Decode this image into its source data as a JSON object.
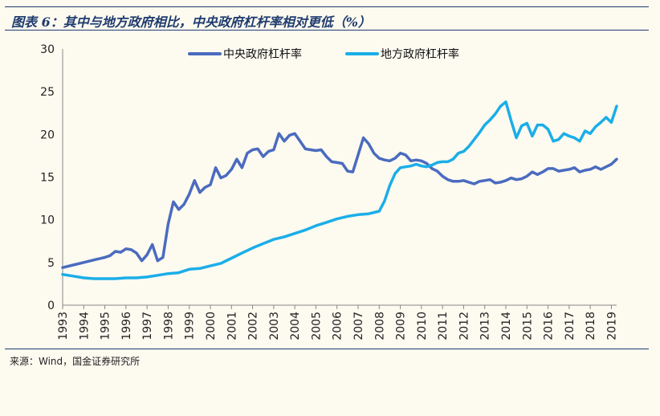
{
  "header": {
    "title": "图表 6：其中与地方政府相比，中央政府杠杆率相对更低（%）"
  },
  "footer": {
    "source": "来源：Wind，国金证券研究所"
  },
  "chart_data": {
    "type": "line",
    "title": "",
    "xlabel": "",
    "ylabel": "",
    "ylim": [
      0,
      30
    ],
    "yticks": [
      "0",
      "5",
      "10",
      "15",
      "20",
      "25",
      "30"
    ],
    "xlim": [
      1993,
      2019.25
    ],
    "xticks": [
      "1993",
      "1994",
      "1995",
      "1996",
      "1997",
      "1998",
      "1999",
      "2000",
      "2001",
      "2002",
      "2003",
      "2004",
      "2005",
      "2006",
      "2007",
      "2008",
      "2009",
      "2010",
      "2011",
      "2012",
      "2013",
      "2014",
      "2015",
      "2016",
      "2017",
      "2018",
      "2019"
    ],
    "grid": false,
    "legend_position": "top-center",
    "series": [
      {
        "name": "中央政府杠杆率",
        "color": "#4a6bbf",
        "points": [
          [
            1993.0,
            4.4
          ],
          [
            1993.5,
            4.7
          ],
          [
            1994.0,
            5.0
          ],
          [
            1994.5,
            5.3
          ],
          [
            1995.0,
            5.6
          ],
          [
            1995.25,
            5.8
          ],
          [
            1995.5,
            6.3
          ],
          [
            1995.75,
            6.2
          ],
          [
            1996.0,
            6.6
          ],
          [
            1996.25,
            6.5
          ],
          [
            1996.5,
            6.1
          ],
          [
            1996.75,
            5.2
          ],
          [
            1997.0,
            5.9
          ],
          [
            1997.25,
            7.1
          ],
          [
            1997.5,
            5.2
          ],
          [
            1997.75,
            5.6
          ],
          [
            1998.0,
            9.5
          ],
          [
            1998.25,
            12.1
          ],
          [
            1998.5,
            11.2
          ],
          [
            1998.75,
            11.8
          ],
          [
            1999.0,
            13.0
          ],
          [
            1999.25,
            14.6
          ],
          [
            1999.5,
            13.2
          ],
          [
            1999.75,
            13.8
          ],
          [
            2000.0,
            14.1
          ],
          [
            2000.25,
            16.1
          ],
          [
            2000.5,
            14.9
          ],
          [
            2000.75,
            15.2
          ],
          [
            2001.0,
            15.9
          ],
          [
            2001.25,
            17.1
          ],
          [
            2001.5,
            16.1
          ],
          [
            2001.75,
            17.8
          ],
          [
            2002.0,
            18.2
          ],
          [
            2002.25,
            18.3
          ],
          [
            2002.5,
            17.4
          ],
          [
            2002.75,
            18.0
          ],
          [
            2003.0,
            18.2
          ],
          [
            2003.25,
            20.1
          ],
          [
            2003.5,
            19.2
          ],
          [
            2003.75,
            19.9
          ],
          [
            2004.0,
            20.1
          ],
          [
            2004.25,
            19.2
          ],
          [
            2004.5,
            18.3
          ],
          [
            2004.75,
            18.2
          ],
          [
            2005.0,
            18.1
          ],
          [
            2005.25,
            18.2
          ],
          [
            2005.5,
            17.4
          ],
          [
            2005.75,
            16.8
          ],
          [
            2006.0,
            16.7
          ],
          [
            2006.25,
            16.6
          ],
          [
            2006.5,
            15.7
          ],
          [
            2006.75,
            15.6
          ],
          [
            2007.0,
            17.6
          ],
          [
            2007.25,
            19.6
          ],
          [
            2007.5,
            18.9
          ],
          [
            2007.75,
            17.8
          ],
          [
            2008.0,
            17.2
          ],
          [
            2008.25,
            17.0
          ],
          [
            2008.5,
            16.9
          ],
          [
            2008.75,
            17.2
          ],
          [
            2009.0,
            17.8
          ],
          [
            2009.25,
            17.6
          ],
          [
            2009.5,
            16.9
          ],
          [
            2009.75,
            17.0
          ],
          [
            2010.0,
            16.9
          ],
          [
            2010.25,
            16.6
          ],
          [
            2010.5,
            16.0
          ],
          [
            2010.75,
            15.7
          ],
          [
            2011.0,
            15.1
          ],
          [
            2011.25,
            14.7
          ],
          [
            2011.5,
            14.5
          ],
          [
            2011.75,
            14.5
          ],
          [
            2012.0,
            14.6
          ],
          [
            2012.25,
            14.4
          ],
          [
            2012.5,
            14.2
          ],
          [
            2012.75,
            14.5
          ],
          [
            2013.0,
            14.6
          ],
          [
            2013.25,
            14.7
          ],
          [
            2013.5,
            14.3
          ],
          [
            2013.75,
            14.4
          ],
          [
            2014.0,
            14.6
          ],
          [
            2014.25,
            14.9
          ],
          [
            2014.5,
            14.7
          ],
          [
            2014.75,
            14.8
          ],
          [
            2015.0,
            15.1
          ],
          [
            2015.25,
            15.6
          ],
          [
            2015.5,
            15.3
          ],
          [
            2015.75,
            15.6
          ],
          [
            2016.0,
            16.0
          ],
          [
            2016.25,
            16.0
          ],
          [
            2016.5,
            15.7
          ],
          [
            2016.75,
            15.8
          ],
          [
            2017.0,
            15.9
          ],
          [
            2017.25,
            16.1
          ],
          [
            2017.5,
            15.6
          ],
          [
            2017.75,
            15.8
          ],
          [
            2018.0,
            15.9
          ],
          [
            2018.25,
            16.2
          ],
          [
            2018.5,
            15.9
          ],
          [
            2018.75,
            16.2
          ],
          [
            2019.0,
            16.5
          ],
          [
            2019.25,
            17.1
          ]
        ]
      },
      {
        "name": "地方政府杠杆率",
        "color": "#1aaee8",
        "points": [
          [
            1993.0,
            3.6
          ],
          [
            1993.5,
            3.4
          ],
          [
            1994.0,
            3.2
          ],
          [
            1994.5,
            3.1
          ],
          [
            1995.0,
            3.1
          ],
          [
            1995.5,
            3.1
          ],
          [
            1996.0,
            3.2
          ],
          [
            1996.5,
            3.2
          ],
          [
            1997.0,
            3.3
          ],
          [
            1997.5,
            3.5
          ],
          [
            1998.0,
            3.7
          ],
          [
            1998.5,
            3.8
          ],
          [
            1999.0,
            4.2
          ],
          [
            1999.5,
            4.3
          ],
          [
            2000.0,
            4.6
          ],
          [
            2000.5,
            4.9
          ],
          [
            2001.0,
            5.5
          ],
          [
            2001.5,
            6.1
          ],
          [
            2002.0,
            6.7
          ],
          [
            2002.5,
            7.2
          ],
          [
            2003.0,
            7.7
          ],
          [
            2003.5,
            8.0
          ],
          [
            2004.0,
            8.4
          ],
          [
            2004.5,
            8.8
          ],
          [
            2005.0,
            9.3
          ],
          [
            2005.5,
            9.7
          ],
          [
            2006.0,
            10.1
          ],
          [
            2006.5,
            10.4
          ],
          [
            2007.0,
            10.6
          ],
          [
            2007.5,
            10.7
          ],
          [
            2008.0,
            11.0
          ],
          [
            2008.25,
            12.2
          ],
          [
            2008.5,
            14.0
          ],
          [
            2008.75,
            15.4
          ],
          [
            2009.0,
            16.1
          ],
          [
            2009.25,
            16.2
          ],
          [
            2009.5,
            16.3
          ],
          [
            2009.75,
            16.5
          ],
          [
            2010.0,
            16.3
          ],
          [
            2010.25,
            16.2
          ],
          [
            2010.5,
            16.4
          ],
          [
            2010.75,
            16.7
          ],
          [
            2011.0,
            16.8
          ],
          [
            2011.25,
            16.8
          ],
          [
            2011.5,
            17.1
          ],
          [
            2011.75,
            17.8
          ],
          [
            2012.0,
            18.0
          ],
          [
            2012.25,
            18.6
          ],
          [
            2012.5,
            19.4
          ],
          [
            2012.75,
            20.2
          ],
          [
            2013.0,
            21.1
          ],
          [
            2013.25,
            21.7
          ],
          [
            2013.5,
            22.4
          ],
          [
            2013.75,
            23.3
          ],
          [
            2014.0,
            23.8
          ],
          [
            2014.25,
            21.6
          ],
          [
            2014.5,
            19.6
          ],
          [
            2014.75,
            21.0
          ],
          [
            2015.0,
            21.3
          ],
          [
            2015.25,
            19.8
          ],
          [
            2015.5,
            21.1
          ],
          [
            2015.75,
            21.1
          ],
          [
            2016.0,
            20.6
          ],
          [
            2016.25,
            19.2
          ],
          [
            2016.5,
            19.4
          ],
          [
            2016.75,
            20.1
          ],
          [
            2017.0,
            19.8
          ],
          [
            2017.25,
            19.6
          ],
          [
            2017.5,
            19.2
          ],
          [
            2017.75,
            20.4
          ],
          [
            2018.0,
            20.1
          ],
          [
            2018.25,
            20.9
          ],
          [
            2018.5,
            21.4
          ],
          [
            2018.75,
            22.0
          ],
          [
            2019.0,
            21.4
          ],
          [
            2019.25,
            23.3
          ]
        ]
      }
    ]
  }
}
